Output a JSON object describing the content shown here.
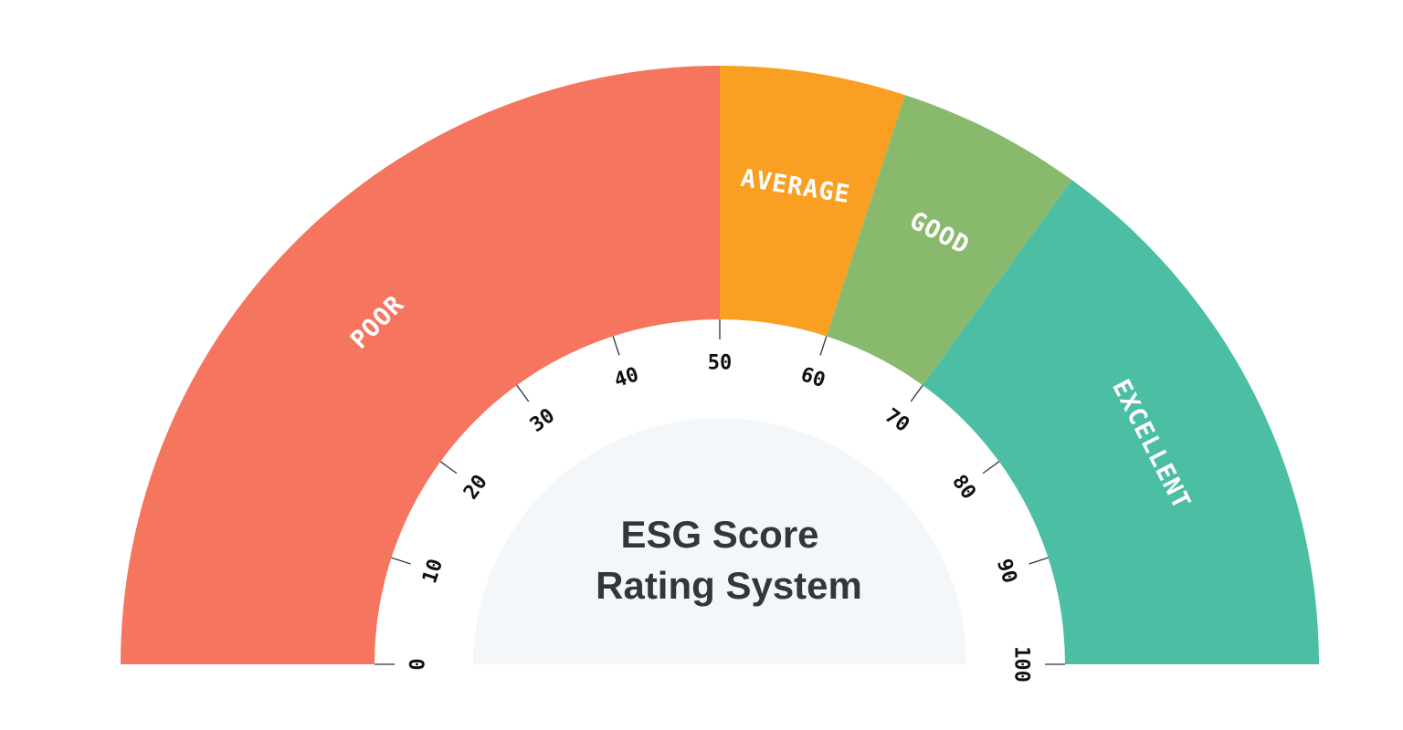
{
  "title": {
    "line1": "ESG Score",
    "line2": "Rating System"
  },
  "scale": {
    "min": 0,
    "max": 100,
    "ticks": [
      {
        "value": 0,
        "label": "0"
      },
      {
        "value": 10,
        "label": "10"
      },
      {
        "value": 20,
        "label": "20"
      },
      {
        "value": 30,
        "label": "30"
      },
      {
        "value": 40,
        "label": "40"
      },
      {
        "value": 50,
        "label": "50"
      },
      {
        "value": 60,
        "label": "60"
      },
      {
        "value": 70,
        "label": "70"
      },
      {
        "value": 80,
        "label": "80"
      },
      {
        "value": 90,
        "label": "90"
      },
      {
        "value": 100,
        "label": "100"
      }
    ]
  },
  "bands": [
    {
      "label": "POOR",
      "from": 0,
      "to": 50,
      "color": "#f6755f"
    },
    {
      "label": "AVERAGE",
      "from": 50,
      "to": 60,
      "color": "#f99f22"
    },
    {
      "label": "GOOD",
      "from": 60,
      "to": 70,
      "color": "#88b96d"
    },
    {
      "label": "EXCELLENT",
      "from": 70,
      "to": 100,
      "color": "#4bbea3"
    }
  ],
  "colors": {
    "scale_ring": "#ffffff",
    "center": "#f4f7fa",
    "tick": "#2d3340",
    "tick_label": "#111111",
    "title": "#33363b"
  }
}
